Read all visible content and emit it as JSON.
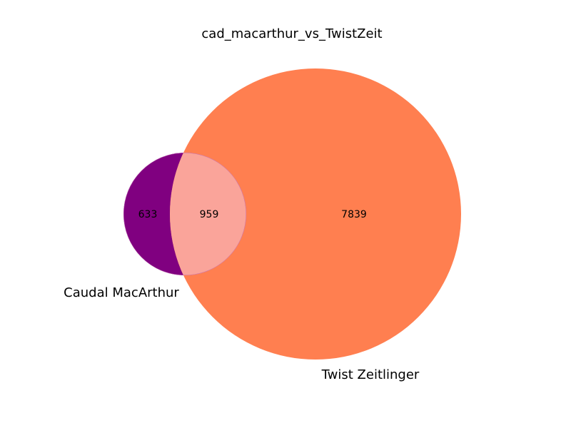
{
  "title": "cad_macarthur_vs_TwistZeit",
  "sets": {
    "left": {
      "label": "Caudal MacArthur",
      "color": "#800080"
    },
    "right": {
      "label": "Twist Zeitlinger",
      "color": "#ff7f50"
    },
    "overlap": {
      "color": "#faa49a",
      "edge": "#c06ab0"
    }
  },
  "counts": {
    "left_only": "633",
    "both": "959",
    "right_only": "7839"
  }
}
